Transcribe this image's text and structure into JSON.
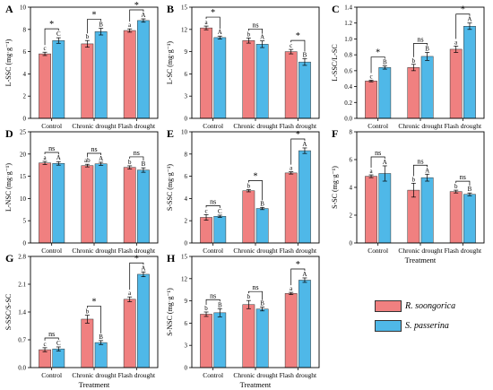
{
  "colors": {
    "R": "#f08080",
    "S": "#4fb8e8",
    "axis": "#000000"
  },
  "legend": {
    "items": [
      {
        "label": "R. soongorica",
        "color": "#f08080"
      },
      {
        "label": "S. passerina",
        "color": "#4fb8e8"
      }
    ]
  },
  "treatment_label": "Treatment",
  "chart_data": [
    {
      "type": "bar",
      "panel": "A",
      "ylabel": "L-SSC (mg·g⁻¹)",
      "categories": [
        "Control",
        "Chronic drought",
        "Flash drought"
      ],
      "ylim": [
        0,
        10
      ],
      "yticks": [
        0,
        2,
        4,
        6,
        8,
        10
      ],
      "show_xlabel": false,
      "series": [
        {
          "name": "R. soongorica",
          "values": [
            5.8,
            6.7,
            7.9
          ],
          "errors": [
            0.15,
            0.3,
            0.15
          ],
          "letters": [
            "c",
            "b",
            "a"
          ]
        },
        {
          "name": "S. passerina",
          "values": [
            7.0,
            7.8,
            8.8
          ],
          "errors": [
            0.25,
            0.3,
            0.15
          ],
          "letters": [
            "C",
            "B",
            "A"
          ]
        }
      ],
      "significance": [
        "*",
        "*",
        "*"
      ]
    },
    {
      "type": "bar",
      "panel": "B",
      "ylabel": "L-SC (mg·g⁻¹)",
      "categories": [
        "Control",
        "Chronic drought",
        "Flash drought"
      ],
      "ylim": [
        0,
        15
      ],
      "yticks": [
        0,
        3,
        6,
        9,
        12,
        15
      ],
      "show_xlabel": false,
      "series": [
        {
          "name": "R. soongorica",
          "values": [
            12.2,
            10.5,
            9.0
          ],
          "errors": [
            0.25,
            0.35,
            0.3
          ],
          "letters": [
            "a",
            "b",
            "c"
          ]
        },
        {
          "name": "S. passerina",
          "values": [
            10.9,
            10.0,
            7.6
          ],
          "errors": [
            0.2,
            0.45,
            0.45
          ],
          "letters": [
            "A",
            "A",
            "B"
          ]
        }
      ],
      "significance": [
        "*",
        "ns",
        "*"
      ]
    },
    {
      "type": "bar",
      "panel": "C",
      "ylabel": "L-SSC/L-SC",
      "categories": [
        "Control",
        "Chronic drought",
        "Flash drought"
      ],
      "ylim": [
        0,
        1.4
      ],
      "yticks": [
        0.0,
        0.2,
        0.4,
        0.6,
        0.8,
        1.0,
        1.2,
        1.4
      ],
      "show_xlabel": false,
      "series": [
        {
          "name": "R. soongorica",
          "values": [
            0.47,
            0.64,
            0.87
          ],
          "errors": [
            0.01,
            0.04,
            0.04
          ],
          "letters": [
            "c",
            "b",
            "a"
          ]
        },
        {
          "name": "S. passerina",
          "values": [
            0.64,
            0.78,
            1.16
          ],
          "errors": [
            0.02,
            0.05,
            0.04
          ],
          "letters": [
            "B",
            "B",
            "A"
          ]
        }
      ],
      "significance": [
        "*",
        "ns",
        "*"
      ]
    },
    {
      "type": "bar",
      "panel": "D",
      "ylabel": "L-NSC (mg·g⁻¹)",
      "categories": [
        "Control",
        "Chronic drought",
        "Flash drought"
      ],
      "ylim": [
        0,
        25
      ],
      "yticks": [
        0,
        5,
        10,
        15,
        20,
        25
      ],
      "show_xlabel": false,
      "series": [
        {
          "name": "R. soongorica",
          "values": [
            18.0,
            17.4,
            17.0
          ],
          "errors": [
            0.35,
            0.3,
            0.35
          ],
          "letters": [
            "a",
            "ab",
            "b"
          ]
        },
        {
          "name": "S. passerina",
          "values": [
            17.9,
            17.8,
            16.4
          ],
          "errors": [
            0.4,
            0.35,
            0.5
          ],
          "letters": [
            "A",
            "A",
            "B"
          ]
        }
      ],
      "significance": [
        "ns",
        "ns",
        "ns"
      ]
    },
    {
      "type": "bar",
      "panel": "E",
      "ylabel": "S-SSC (mg·g⁻¹)",
      "categories": [
        "Control",
        "Chronic drought",
        "Flash drought"
      ],
      "ylim": [
        0,
        10
      ],
      "yticks": [
        0,
        2,
        4,
        6,
        8,
        10
      ],
      "show_xlabel": false,
      "series": [
        {
          "name": "R. soongorica",
          "values": [
            2.3,
            4.7,
            6.3
          ],
          "errors": [
            0.25,
            0.1,
            0.1
          ],
          "letters": [
            "c",
            "b",
            "a"
          ]
        },
        {
          "name": "S. passerina",
          "values": [
            2.4,
            3.1,
            8.3
          ],
          "errors": [
            0.1,
            0.1,
            0.25
          ],
          "letters": [
            "C",
            "B",
            "A"
          ]
        }
      ],
      "significance": [
        "ns",
        "*",
        "*"
      ]
    },
    {
      "type": "bar",
      "panel": "F",
      "ylabel": "S-SC (mg·g⁻¹)",
      "categories": [
        "Control",
        "Chronic drought",
        "Flash drought"
      ],
      "ylim": [
        0,
        8
      ],
      "yticks": [
        0,
        2,
        4,
        6,
        8
      ],
      "show_xlabel": true,
      "series": [
        {
          "name": "R. soongorica",
          "values": [
            4.8,
            3.8,
            3.7
          ],
          "errors": [
            0.1,
            0.5,
            0.1
          ],
          "letters": [
            "a",
            "b",
            "b"
          ]
        },
        {
          "name": "S. passerina",
          "values": [
            5.0,
            4.7,
            3.5
          ],
          "errors": [
            0.55,
            0.25,
            0.1
          ],
          "letters": [
            "A",
            "A",
            "B"
          ]
        }
      ],
      "significance": [
        "ns",
        "ns",
        "ns"
      ]
    },
    {
      "type": "bar",
      "panel": "G",
      "ylabel": "S-SSC/S-SC",
      "categories": [
        "Control",
        "Chronic drought",
        "Flash drought"
      ],
      "ylim": [
        0,
        2.8
      ],
      "yticks": [
        0.0,
        0.7,
        1.4,
        2.1,
        2.8
      ],
      "show_xlabel": true,
      "series": [
        {
          "name": "R. soongorica",
          "values": [
            0.45,
            1.22,
            1.72
          ],
          "errors": [
            0.05,
            0.1,
            0.06
          ],
          "letters": [
            "c",
            "b",
            "a"
          ]
        },
        {
          "name": "S. passerina",
          "values": [
            0.47,
            0.63,
            2.35
          ],
          "errors": [
            0.05,
            0.05,
            0.06
          ],
          "letters": [
            "C",
            "B",
            "A"
          ]
        }
      ],
      "significance": [
        "ns",
        "*",
        "*"
      ]
    },
    {
      "type": "bar",
      "panel": "H",
      "ylabel": "S-NSC (mg·g⁻¹)",
      "categories": [
        "Control",
        "Chronic drought",
        "Flash drought"
      ],
      "ylim": [
        0,
        15
      ],
      "yticks": [
        0,
        3,
        6,
        9,
        12,
        15
      ],
      "show_xlabel": true,
      "series": [
        {
          "name": "R. soongorica",
          "values": [
            7.2,
            8.5,
            10.0
          ],
          "errors": [
            0.3,
            0.55,
            0.15
          ],
          "letters": [
            "b",
            "b",
            "a"
          ]
        },
        {
          "name": "S. passerina",
          "values": [
            7.4,
            7.9,
            11.8
          ],
          "errors": [
            0.55,
            0.25,
            0.3
          ],
          "letters": [
            "B",
            "B",
            "A"
          ]
        }
      ],
      "significance": [
        "ns",
        "ns",
        "*"
      ]
    }
  ]
}
